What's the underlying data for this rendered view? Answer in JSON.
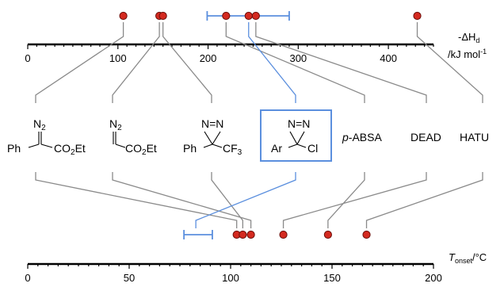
{
  "chart_data": [
    {
      "type": "scatter",
      "axis": "top",
      "ylabel": "-ΔH",
      "ylabel_sub": "d",
      "unit": "/kJ mol",
      "unit_sup": "-1",
      "xlim": [
        0,
        450
      ],
      "ticks": [
        "0",
        "100",
        "200",
        "300",
        "400"
      ],
      "tick_values": [
        0,
        100,
        200,
        300,
        400
      ],
      "points": [
        {
          "compound": "ethyl 2-diazo-2-phenylacetate",
          "x": 106
        },
        {
          "compound": "ethyl diazoacetate",
          "x": 146
        },
        {
          "compound": "3-phenyl-3-(trifluoromethyl)diazirine",
          "x": 150
        },
        {
          "compound": "p-ABSA",
          "x": 220
        },
        {
          "compound": "DEAD",
          "x": 253
        },
        {
          "compound": "HATU",
          "x": 432
        }
      ],
      "range_bar": {
        "compound": "3-aryl-3-chlorodiazirine",
        "center": 245,
        "low": 199,
        "high": 290
      }
    },
    {
      "type": "scatter",
      "axis": "bottom",
      "ylabel": "T",
      "ylabel_sub": "onset",
      "unit": "/°C",
      "xlim": [
        0,
        200
      ],
      "ticks": [
        "0",
        "50",
        "100",
        "150",
        "200"
      ],
      "tick_values": [
        0,
        50,
        100,
        150,
        200
      ],
      "points": [
        {
          "compound": "ethyl 2-diazo-2-phenylacetate",
          "x": 103
        },
        {
          "compound": "ethyl diazoacetate",
          "x": 110
        },
        {
          "compound": "3-phenyl-3-(trifluoromethyl)diazirine",
          "x": 106
        },
        {
          "compound": "p-ABSA",
          "x": 148
        },
        {
          "compound": "DEAD",
          "x": 126
        },
        {
          "compound": "HATU",
          "x": 167
        }
      ],
      "range_bar": {
        "compound": "3-aryl-3-chlorodiazirine",
        "low": 77,
        "high": 91
      }
    }
  ],
  "compounds": [
    {
      "id": "edpa",
      "label_parts": [
        "N",
        "2",
        "Ph",
        "CO",
        "2",
        "Et"
      ]
    },
    {
      "id": "eda",
      "label_parts": [
        "N",
        "2",
        "CO",
        "2",
        "Et"
      ]
    },
    {
      "id": "ptfd",
      "label_parts": [
        "N=N",
        "Ph",
        "CF",
        "3"
      ]
    },
    {
      "id": "acd",
      "label_parts": [
        "N=N",
        "Ar",
        "Cl"
      ]
    },
    {
      "id": "pabsa",
      "label_parts": [
        "p",
        "-ABSA"
      ]
    },
    {
      "id": "dead",
      "label_parts": [
        "DEAD"
      ]
    },
    {
      "id": "hatu",
      "label_parts": [
        "HATU"
      ]
    }
  ],
  "colors": {
    "point_fill": "#d42a20",
    "point_stroke": "#6b0e0a",
    "highlight": "#5b8fde",
    "connector": "#8a8a8a",
    "axis": "#000000"
  }
}
